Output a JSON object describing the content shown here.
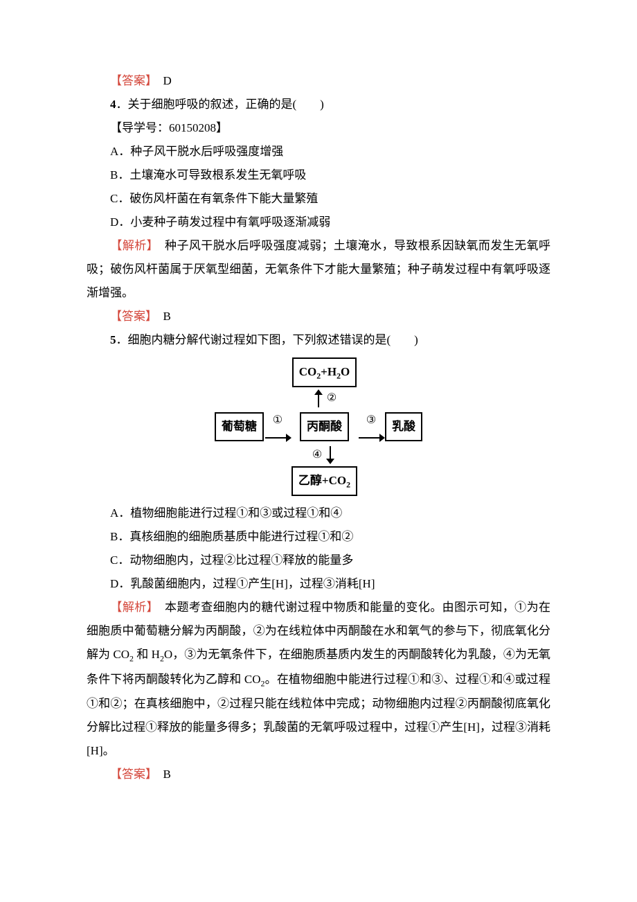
{
  "colors": {
    "red": "#d4483c",
    "text": "#000000",
    "background": "#ffffff",
    "border": "#000000"
  },
  "typography": {
    "body_fontsize_pt": 13,
    "line_height": 2,
    "font_family": "SimSun"
  },
  "q3_answer": {
    "label": "【答案】",
    "value": "　D"
  },
  "q4": {
    "num": "4",
    "stem": "．关于细胞呼吸的叙述，正确的是(　　)",
    "refnum_label": "【导学号：60150208】",
    "options": {
      "A": "A．种子风干脱水后呼吸强度增强",
      "B": "B．土壤淹水可导致根系发生无氧呼吸",
      "C": "C．破伤风杆菌在有氧条件下能大量繁殖",
      "D": "D．小麦种子萌发过程中有氧呼吸逐渐减弱"
    },
    "analysis_label": "【解析】",
    "analysis_text": "　种子风干脱水后呼吸强度减弱；土壤淹水，导致根系因缺氧而发生无氧呼吸；破伤风杆菌属于厌氧型细菌，无氧条件下才能大量繁殖；种子萌发过程中有氧呼吸逐渐增强。",
    "answer_label": "【答案】",
    "answer_value": "　B"
  },
  "q5": {
    "num": "5",
    "stem": "．细胞内糖分解代谢过程如下图，下列叙述错误的是(　　)",
    "diagram": {
      "type": "flowchart",
      "nodes": {
        "top": "CO₂+H₂O",
        "left": "葡萄糖",
        "center": "丙酮酸",
        "right": "乳酸",
        "bottom": "乙醇+CO₂"
      },
      "edges": [
        {
          "from": "left",
          "to": "center",
          "label": "①",
          "dir": "right"
        },
        {
          "from": "center",
          "to": "top",
          "label": "②",
          "dir": "up"
        },
        {
          "from": "center",
          "to": "right",
          "label": "③",
          "dir": "right"
        },
        {
          "from": "center",
          "to": "bottom",
          "label": "④",
          "dir": "down"
        }
      ],
      "box_border_width": 2,
      "arrow_width": 2,
      "font_weight": "bold"
    },
    "options": {
      "A": "A．植物细胞能进行过程①和③或过程①和④",
      "B": "B．真核细胞的细胞质基质中能进行过程①和②",
      "C": "C．动物细胞内，过程②比过程①释放的能量多",
      "D": "D．乳酸菌细胞内，过程①产生[H]，过程③消耗[H]"
    },
    "analysis_label": "【解析】",
    "analysis_text_1": "　本题考查细胞内的糖代谢过程中物质和能量的变化。由图示可知，①为在细胞质中葡萄糖分解为丙酮酸，②为在线粒体中丙酮酸在水和氧气的参与下，彻底氧化分解为 CO",
    "analysis_text_2": " 和 H",
    "analysis_text_3": "O，③为无氧条件下，在细胞质基质内发生的丙酮酸转化为乳酸，④为无氧条件下将丙酮酸转化为乙醇和 CO",
    "analysis_text_4": "。在植物细胞中能进行过程①和③、过程①和④或过程①和②；在真核细胞中，②过程只能在线粒体中完成；动物细胞内过程②丙酮酸彻底氧化分解比过程①释放的能量多得多；乳酸菌的无氧呼吸过程中，过程①产生[H]，过程③消耗[H]。",
    "answer_label": "【答案】",
    "answer_value": "　B"
  }
}
